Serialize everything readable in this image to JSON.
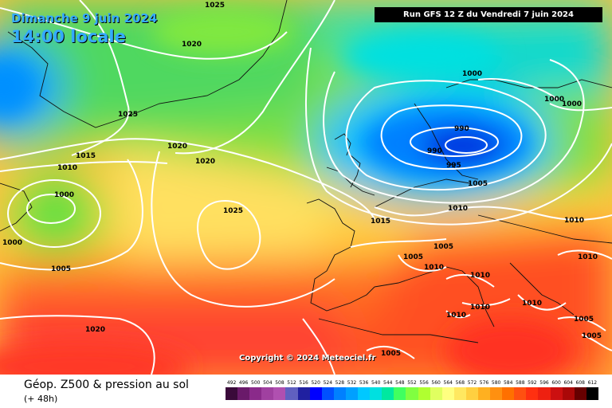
{
  "header": {
    "date": "Dimanche 9 juin 2024",
    "time": "14:00 locale",
    "run": "Run GFS 12 Z du Vendredi 7 juin 2024"
  },
  "copyright": "Copyright © 2024 Meteociel.fr",
  "footer": {
    "title": "Géop. Z500 & pression au sol",
    "subtitle": "(+ 48h)"
  },
  "legend": {
    "labels": [
      "492",
      "496",
      "500",
      "504",
      "508",
      "512",
      "516",
      "520",
      "524",
      "528",
      "532",
      "536",
      "540",
      "544",
      "548",
      "552",
      "556",
      "560",
      "564",
      "568",
      "572",
      "576",
      "580",
      "584",
      "588",
      "592",
      "596",
      "600",
      "604",
      "608",
      "612"
    ],
    "colors": [
      "#3a0a3a",
      "#6a1a6a",
      "#8a2a8a",
      "#a040a0",
      "#b050b0",
      "#6060c0",
      "#2020a0",
      "#0000ff",
      "#0050ff",
      "#0080ff",
      "#00a0ff",
      "#00c8ff",
      "#00e0e0",
      "#00e8a0",
      "#40ff60",
      "#80ff40",
      "#b0ff30",
      "#e0ff60",
      "#ffff80",
      "#ffe860",
      "#ffd040",
      "#ffb020",
      "#ff9010",
      "#ff7000",
      "#ff5010",
      "#ff3010",
      "#ee2010",
      "#cc1010",
      "#aa0808",
      "#660000",
      "#000000"
    ]
  },
  "isobars": [
    "1025",
    "1020",
    "1025",
    "1015",
    "1020",
    "1010",
    "1020",
    "1000",
    "1025",
    "1000",
    "1005",
    "1020",
    "1000",
    "990",
    "990",
    "995",
    "1000",
    "1000",
    "1005",
    "1010",
    "1010",
    "1015",
    "1005",
    "1005",
    "1010",
    "1010",
    "1010",
    "1010",
    "1010",
    "1010",
    "1005",
    "1005",
    "1005"
  ]
}
